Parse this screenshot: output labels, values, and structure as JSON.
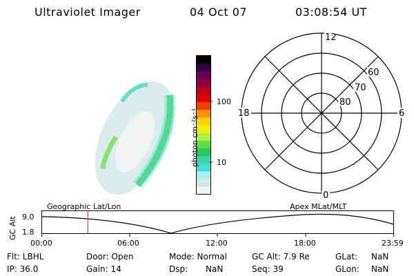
{
  "header": {
    "instrument": "Ultraviolet Imager",
    "date": "04 Oct 07",
    "time": "03:08:54 UT"
  },
  "colorbar": {
    "label": "photon cm⁻²s⁻¹",
    "tick_100": "100",
    "tick_10": "10",
    "colors": [
      "#f4f4f4",
      "#d8e6e6",
      "#a8f0f0",
      "#40e0e0",
      "#38d8a0",
      "#20cc60",
      "#60e040",
      "#b0f040",
      "#f0f000",
      "#ffd000",
      "#ff9000",
      "#f04000",
      "#e00000",
      "#c00020",
      "#900040",
      "#600060",
      "#300040",
      "#000000"
    ]
  },
  "polar": {
    "mlt_12": "12",
    "mlt_18": "18",
    "mlt_6": "6",
    "mlt_0": "0",
    "lat_60": "60",
    "lat_70": "70",
    "lat_80": "80"
  },
  "timeline": {
    "left_title": "Geographic Lat/Lon",
    "right_title": "Apex MLat/MLT",
    "ylabel": "GC Alt",
    "ytop": "9.0",
    "ybottom": "1.8",
    "ticks": [
      "00:00",
      "06:00",
      "12:00",
      "18:00",
      "23:59"
    ],
    "marker_time_hours": 3.15,
    "marker_color": "#e04060"
  },
  "info": {
    "flt": "Flt: LBHL",
    "ip": "IP: 36.0",
    "door": "Door: Open",
    "gain": "Gain: 14",
    "mode": "Mode: Normal",
    "dsp": "Dsp:",
    "dsp_val": "NaN",
    "gcalt": "GC Alt: 7.9 Re",
    "seq": "Seq: 39",
    "glat": "GLat:",
    "glat_val": "NaN",
    "glon": "GLon:",
    "glon_val": "NaN"
  }
}
